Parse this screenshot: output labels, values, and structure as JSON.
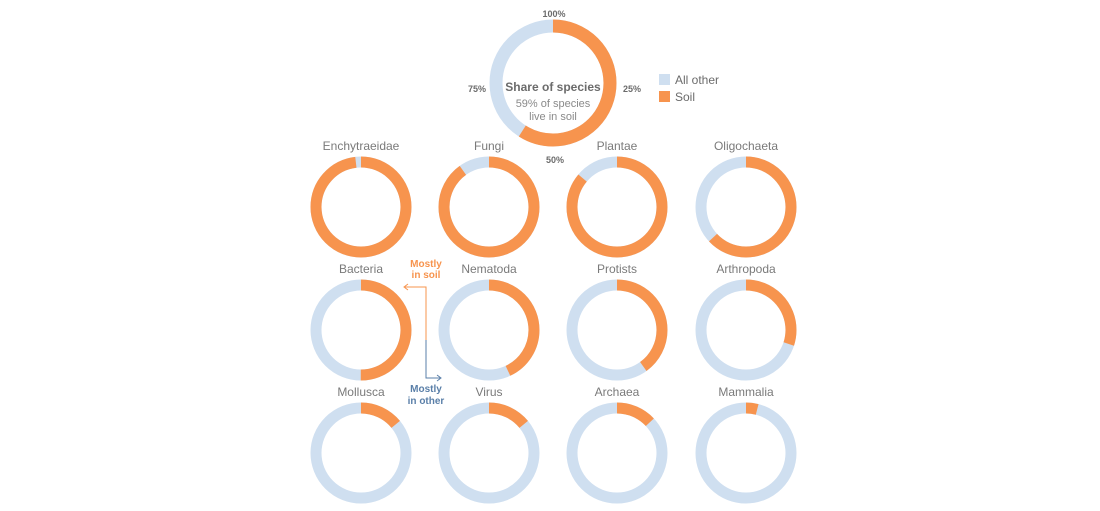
{
  "chart_data": {
    "type": "pie",
    "title": "Share of species",
    "note": [
      "59% of species",
      "live in soil"
    ],
    "ticks": [
      "100%",
      "25%",
      "50%",
      "75%"
    ],
    "legend": [
      {
        "label": "All other",
        "color": "#cfdff0"
      },
      {
        "label": "Soil",
        "color": "#f7944e"
      }
    ],
    "overall": {
      "soil": 59
    },
    "hints": {
      "soil": [
        "Mostly",
        "in soil"
      ],
      "other": [
        "Mostly",
        "in other"
      ],
      "soil_color": "#f7944e",
      "other_color": "#5a7fa8"
    },
    "categories": [
      {
        "name": "Enchytraeidae",
        "soil": 98
      },
      {
        "name": "Fungi",
        "soil": 90
      },
      {
        "name": "Plantae",
        "soil": 86
      },
      {
        "name": "Oligochaeta",
        "soil": 63
      },
      {
        "name": "Bacteria",
        "soil": 50
      },
      {
        "name": "Nematoda",
        "soil": 43
      },
      {
        "name": "Protists",
        "soil": 40
      },
      {
        "name": "Arthropoda",
        "soil": 30
      },
      {
        "name": "Mollusca",
        "soil": 14
      },
      {
        "name": "Virus",
        "soil": 14
      },
      {
        "name": "Archaea",
        "soil": 13
      },
      {
        "name": "Mammalia",
        "soil": 4
      }
    ]
  }
}
